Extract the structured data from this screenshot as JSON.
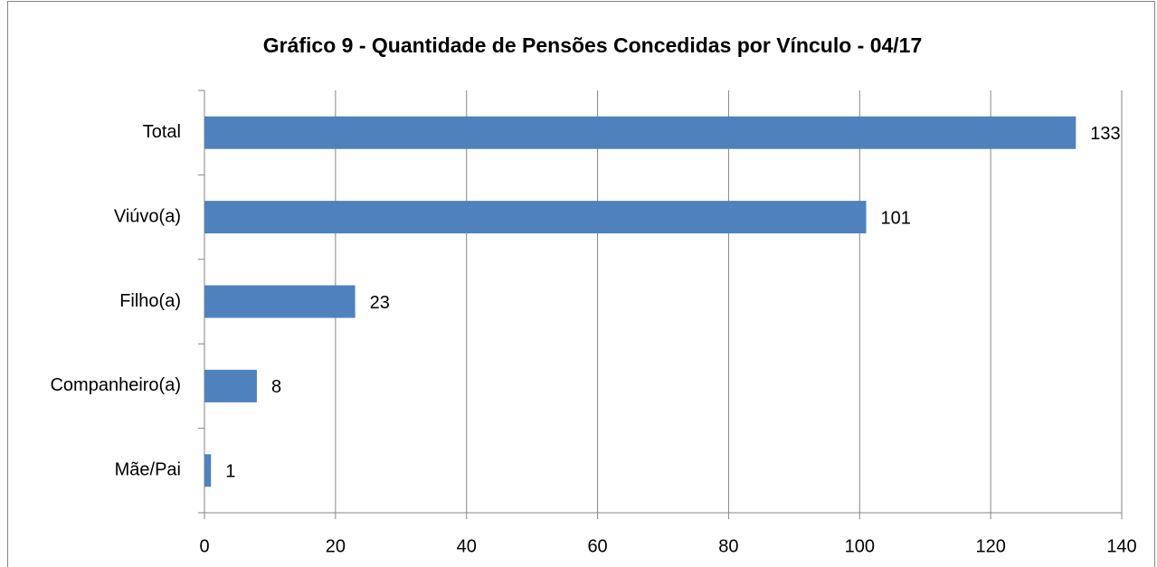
{
  "chart_data": {
    "type": "bar",
    "orientation": "horizontal",
    "title": "Gráfico 9 - Quantidade de Pensões Concedidas por Vínculo - 04/17",
    "categories": [
      "Total",
      "Viúvo(a)",
      "Filho(a)",
      "Companheiro(a)",
      "Mãe/Pai"
    ],
    "values": [
      133,
      101,
      23,
      8,
      1
    ],
    "color": "#4f81bd",
    "xlim": [
      0,
      140
    ],
    "xticks": [
      0,
      20,
      40,
      60,
      80,
      100,
      120,
      140
    ],
    "grid": true
  }
}
